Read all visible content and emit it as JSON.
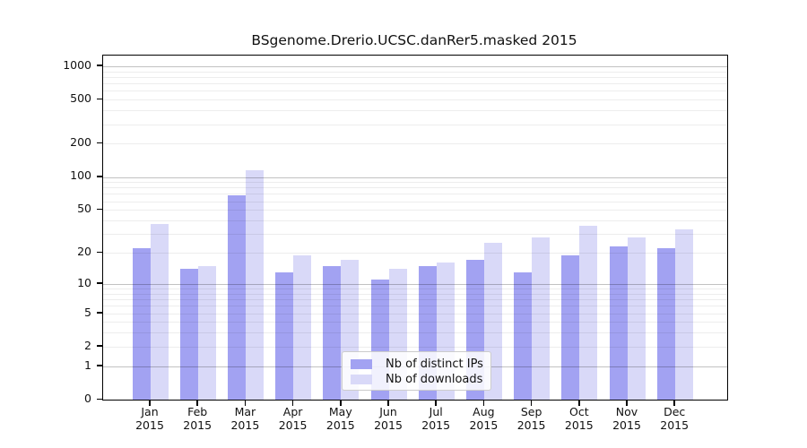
{
  "chart_data": {
    "type": "bar",
    "title": "BSgenome.Drerio.UCSC.danRer5.masked 2015",
    "categories": [
      "Jan",
      "Feb",
      "Mar",
      "Apr",
      "May",
      "Jun",
      "Jul",
      "Aug",
      "Sep",
      "Oct",
      "Nov",
      "Dec"
    ],
    "x_year_label": "2015",
    "series": [
      {
        "name": "Nb of distinct IPs",
        "color": "#a2a2f2",
        "values": [
          22,
          14,
          68,
          13,
          15,
          11,
          15,
          17,
          13,
          19,
          23,
          22
        ]
      },
      {
        "name": "Nb of downloads",
        "color": "#d9d9f8",
        "values": [
          37,
          15,
          115,
          19,
          17,
          14,
          16,
          25,
          28,
          36,
          28,
          33
        ]
      }
    ],
    "yscale": "log1p",
    "ylim": [
      0,
      1250
    ],
    "yticks": [
      0,
      1,
      2,
      5,
      10,
      20,
      50,
      100,
      200,
      500,
      1000
    ],
    "y_major_gridlines": [
      1,
      10,
      100,
      1000
    ],
    "y_minor_gridlines": [
      2,
      3,
      4,
      5,
      6,
      7,
      8,
      9,
      20,
      30,
      40,
      50,
      60,
      70,
      80,
      90,
      200,
      300,
      400,
      500,
      600,
      700,
      800,
      900
    ],
    "grid": true,
    "legend_position": "lower center"
  }
}
